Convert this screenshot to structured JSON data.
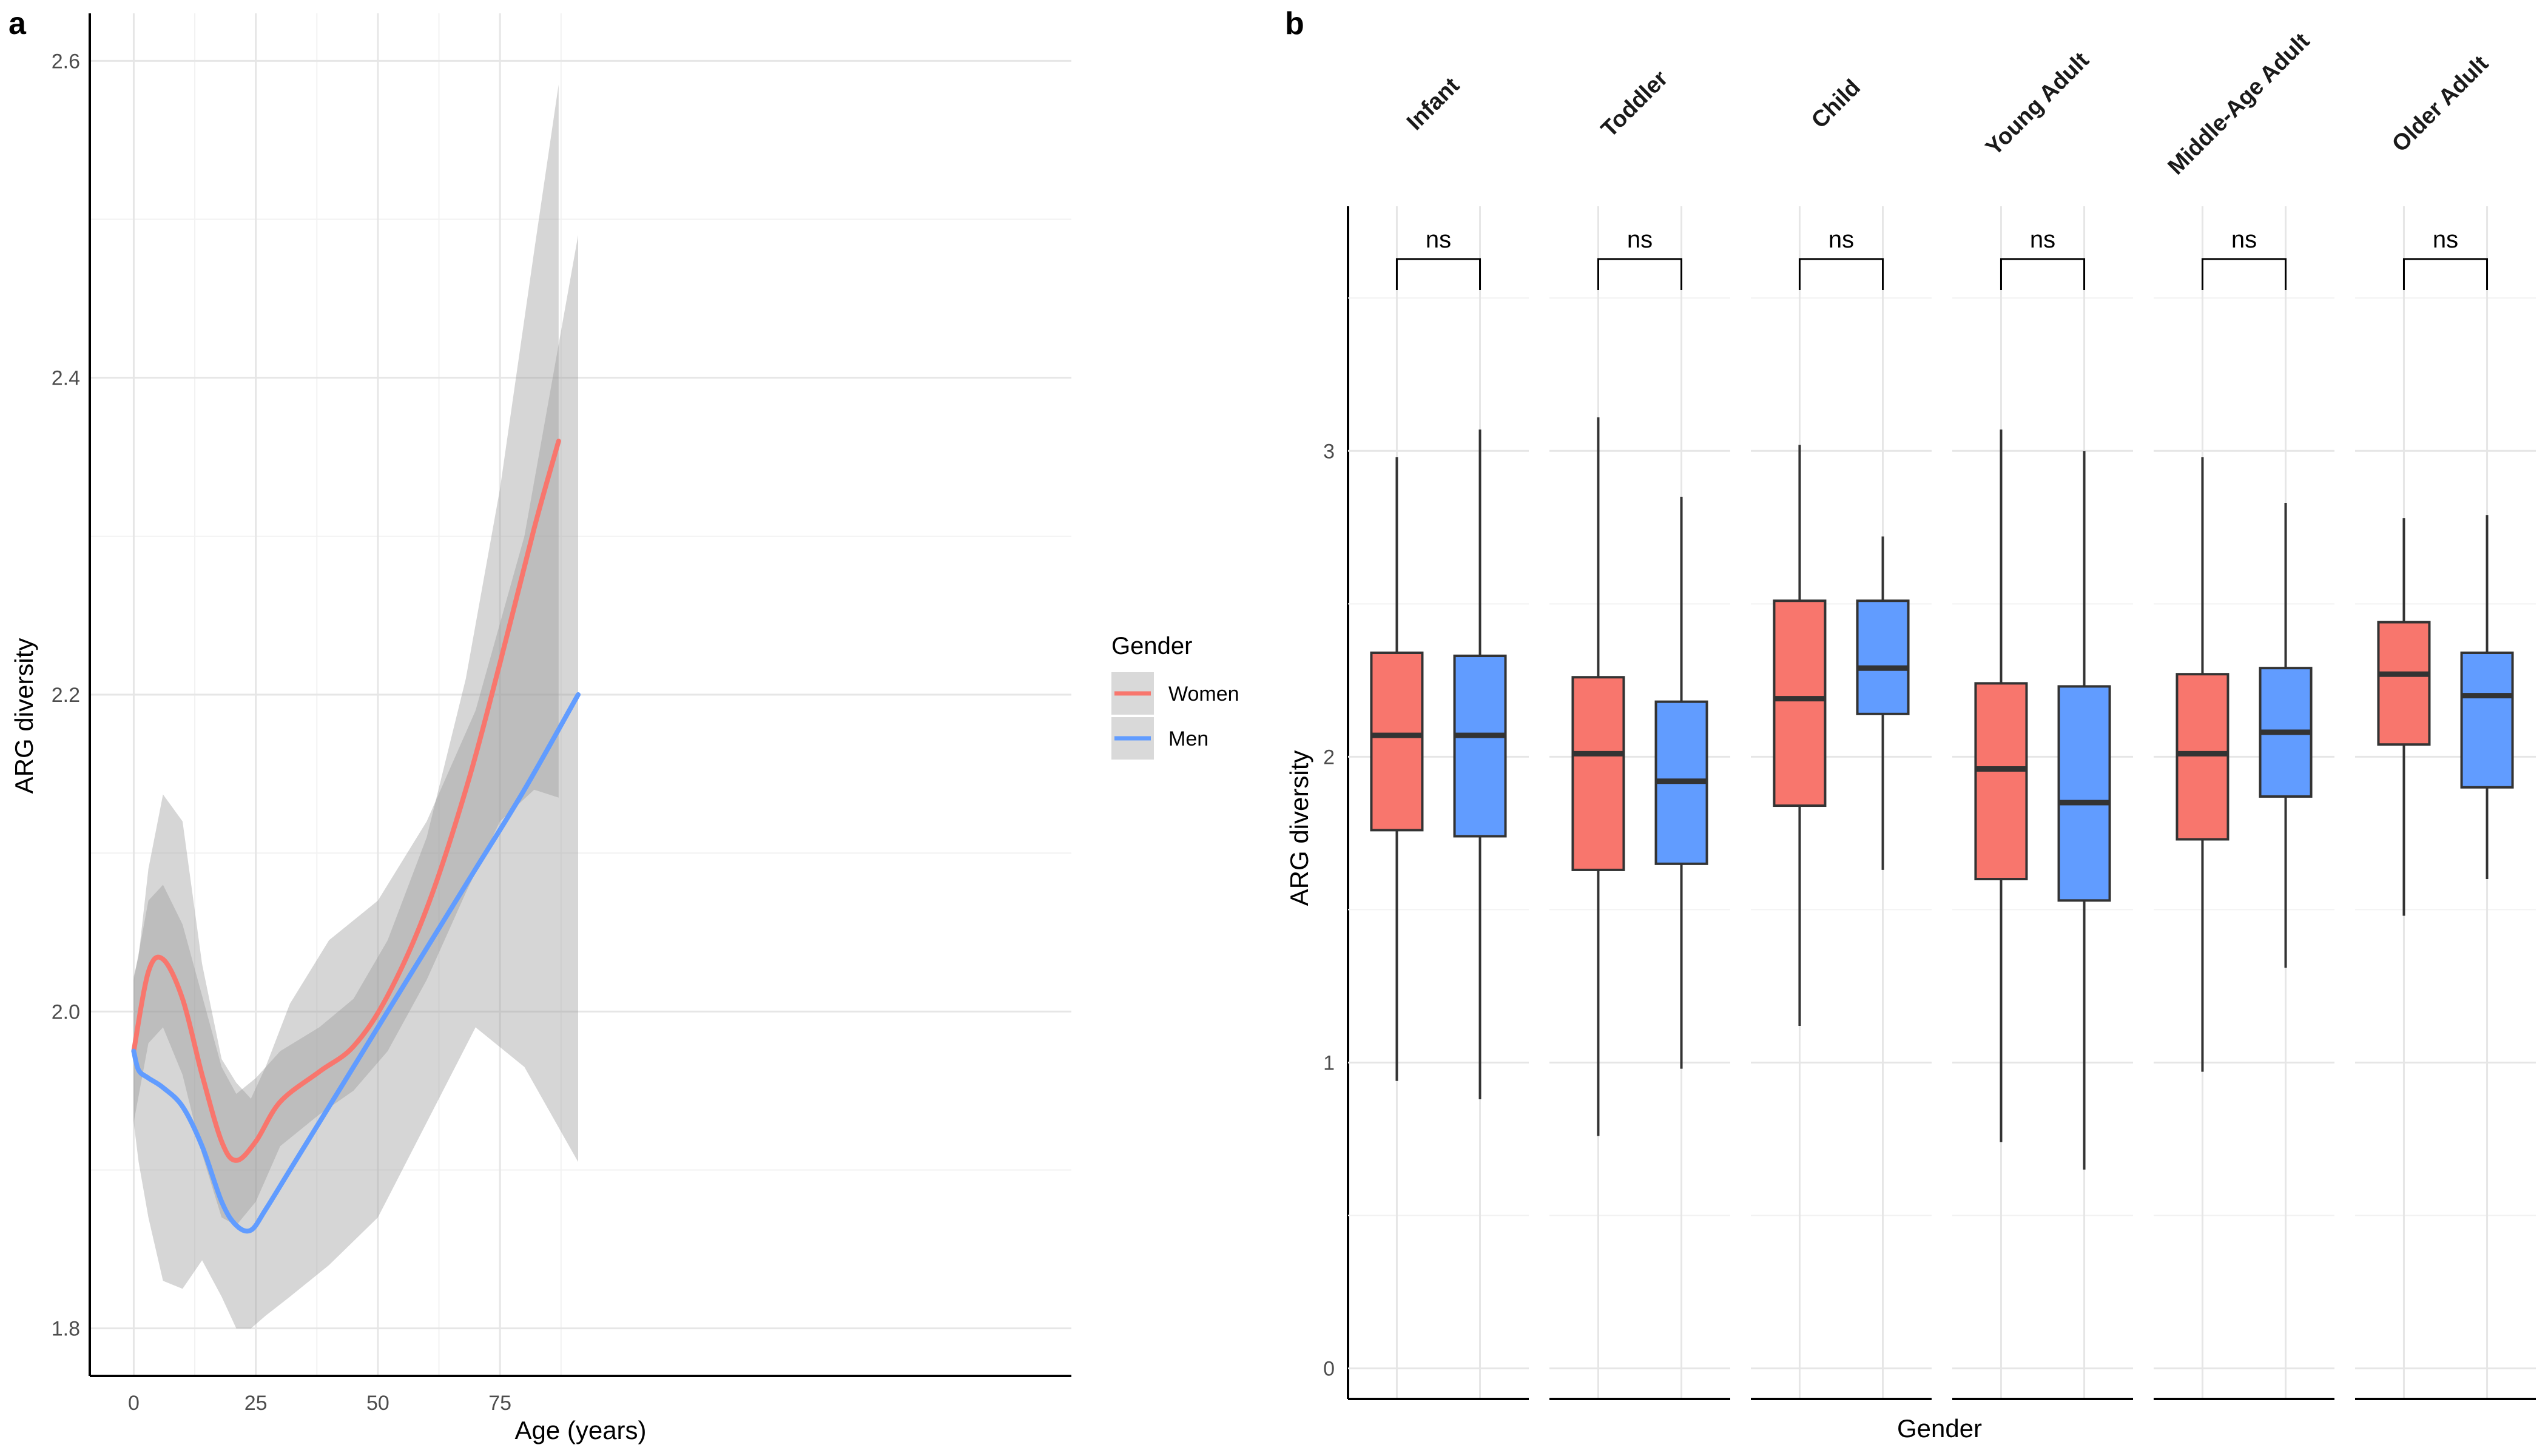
{
  "chart_data": [
    {
      "panel": "a",
      "type": "line",
      "xlabel": "Age (years)",
      "ylabel": "ARG diversity",
      "xlim": [
        -9,
        192
      ],
      "ylim": [
        1.77,
        2.63
      ],
      "xticks": [
        0,
        25,
        50,
        75
      ],
      "yticks": [
        1.8,
        2.0,
        2.2,
        2.4,
        2.6
      ],
      "ytick_labels": [
        "1.8",
        "2.0",
        "2.2",
        "2.4",
        "2.6"
      ],
      "grid": true,
      "legend": {
        "title": "Gender",
        "position": "right",
        "entries": [
          "Women",
          "Men"
        ]
      },
      "series": [
        {
          "name": "Women",
          "color": "#F8766D",
          "x": [
            0,
            3,
            6,
            10,
            14,
            18,
            21,
            25,
            30,
            38,
            45,
            52,
            60,
            68,
            75,
            82,
            87
          ],
          "y": [
            1.975,
            2.025,
            2.033,
            2.008,
            1.96,
            1.918,
            1.906,
            1.918,
            1.943,
            1.962,
            1.978,
            2.01,
            2.065,
            2.14,
            2.22,
            2.305,
            2.36
          ],
          "ci_lower": [
            1.93,
            1.98,
            1.99,
            1.96,
            1.91,
            1.87,
            1.865,
            1.88,
            1.915,
            1.935,
            1.95,
            1.975,
            2.02,
            2.075,
            2.12,
            2.14,
            2.135
          ],
          "ci_upper": [
            2.02,
            2.07,
            2.08,
            2.055,
            2.01,
            1.965,
            1.948,
            1.958,
            1.975,
            1.99,
            2.008,
            2.045,
            2.11,
            2.21,
            2.33,
            2.48,
            2.585
          ]
        },
        {
          "name": "Men",
          "color": "#619CFF",
          "x": [
            0,
            1,
            3,
            6,
            10,
            14,
            18,
            21,
            24,
            27,
            32,
            40,
            50,
            60,
            70,
            80,
            91
          ],
          "y": [
            1.975,
            1.963,
            1.958,
            1.952,
            1.94,
            1.915,
            1.88,
            1.865,
            1.862,
            1.875,
            1.9,
            1.94,
            1.99,
            2.04,
            2.09,
            2.14,
            2.2
          ],
          "ci_lower": [
            1.93,
            1.905,
            1.87,
            1.83,
            1.825,
            1.843,
            1.82,
            1.8,
            1.8,
            1.808,
            1.82,
            1.84,
            1.87,
            1.93,
            1.99,
            1.965,
            1.905
          ],
          "ci_upper": [
            2.022,
            2.035,
            2.09,
            2.137,
            2.12,
            2.03,
            1.97,
            1.955,
            1.945,
            1.965,
            2.005,
            2.045,
            2.07,
            2.12,
            2.19,
            2.3,
            2.49
          ]
        }
      ]
    },
    {
      "panel": "b",
      "type": "box",
      "xlabel": "Gender",
      "ylabel": "ARG diversity",
      "ylim": [
        -0.1,
        3.8
      ],
      "yticks": [
        0,
        1,
        2,
        3
      ],
      "ytick_labels": [
        "0",
        "1",
        "2",
        "3"
      ],
      "grid": true,
      "facets": [
        "Infant",
        "Toddler",
        "Child",
        "Young Adult",
        "Middle-Age Adult",
        "Older Adult"
      ],
      "groups": [
        "Women",
        "Men"
      ],
      "colors": [
        "#F8766D",
        "#619CFF"
      ],
      "significance": [
        "ns",
        "ns",
        "ns",
        "ns",
        "ns",
        "ns"
      ],
      "boxes": [
        [
          {
            "whisker_low": 0.94,
            "q1": 1.76,
            "median": 2.07,
            "q3": 2.34,
            "whisker_high": 2.98
          },
          {
            "whisker_low": 0.88,
            "q1": 1.74,
            "median": 2.07,
            "q3": 2.33,
            "whisker_high": 3.07
          }
        ],
        [
          {
            "whisker_low": 0.76,
            "q1": 1.63,
            "median": 2.01,
            "q3": 2.26,
            "whisker_high": 3.11
          },
          {
            "whisker_low": 0.98,
            "q1": 1.65,
            "median": 1.92,
            "q3": 2.18,
            "whisker_high": 2.85
          }
        ],
        [
          {
            "whisker_low": 1.12,
            "q1": 1.84,
            "median": 2.19,
            "q3": 2.51,
            "whisker_high": 3.02
          },
          {
            "whisker_low": 1.63,
            "q1": 2.14,
            "median": 2.29,
            "q3": 2.51,
            "whisker_high": 2.72
          }
        ],
        [
          {
            "whisker_low": 0.74,
            "q1": 1.6,
            "median": 1.96,
            "q3": 2.24,
            "whisker_high": 3.07
          },
          {
            "whisker_low": 0.65,
            "q1": 1.53,
            "median": 1.85,
            "q3": 2.23,
            "whisker_high": 3.0
          }
        ],
        [
          {
            "whisker_low": 0.97,
            "q1": 1.73,
            "median": 2.01,
            "q3": 2.27,
            "whisker_high": 2.98
          },
          {
            "whisker_low": 1.31,
            "q1": 1.87,
            "median": 2.08,
            "q3": 2.29,
            "whisker_high": 2.83
          }
        ],
        [
          {
            "whisker_low": 1.48,
            "q1": 2.04,
            "median": 2.27,
            "q3": 2.44,
            "whisker_high": 2.78
          },
          {
            "whisker_low": 1.6,
            "q1": 1.9,
            "median": 2.2,
            "q3": 2.34,
            "whisker_high": 2.79
          }
        ]
      ]
    }
  ],
  "panel_labels": {
    "a": "a",
    "b": "b"
  }
}
